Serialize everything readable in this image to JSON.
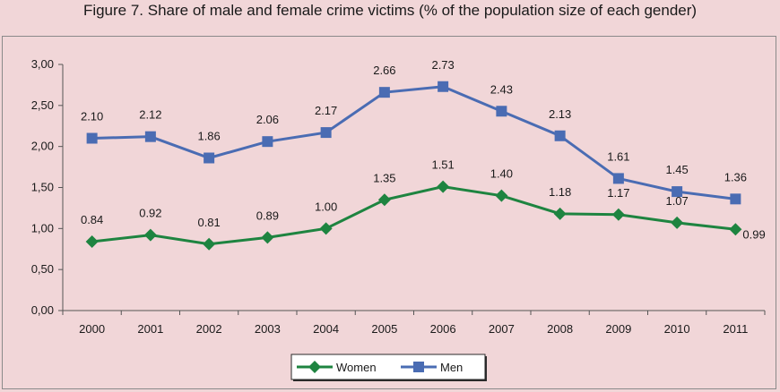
{
  "figure_title": "Figure 7. Share of  male and female crime victims (% of the population size of each gender)",
  "chart_data": {
    "type": "line",
    "title": "Figure 7. Share of  male and female crime victims (% of the population size of each gender)",
    "xlabel": "",
    "ylabel": "",
    "x": [
      "2000",
      "2001",
      "2002",
      "2003",
      "2004",
      "2005",
      "2006",
      "2007",
      "2008",
      "2009",
      "2010",
      "2011"
    ],
    "ylim": [
      0,
      3
    ],
    "yticks": [
      0,
      0.5,
      1,
      1.5,
      2,
      2.5,
      3
    ],
    "ytick_labels": [
      "0,00",
      "0,50",
      "1,00",
      "1,50",
      "2,00",
      "2,50",
      "3,00"
    ],
    "grid": false,
    "legend_position": "bottom",
    "series": [
      {
        "name": "Women",
        "marker": "diamond",
        "color": "#1e8440",
        "values": [
          0.84,
          0.92,
          0.81,
          0.89,
          1.0,
          1.35,
          1.51,
          1.4,
          1.18,
          1.17,
          1.07,
          0.99
        ],
        "labels": [
          "0.84",
          "0.92",
          "0.81",
          "0.89",
          "1.00",
          "1.35",
          "1.51",
          "1.40",
          "1.18",
          "1.17",
          "1.07",
          "0.99"
        ]
      },
      {
        "name": "Men",
        "marker": "square",
        "color": "#4a6cb3",
        "values": [
          2.1,
          2.12,
          1.86,
          2.06,
          2.17,
          2.66,
          2.73,
          2.43,
          2.13,
          1.61,
          1.45,
          1.36
        ],
        "labels": [
          "2.10",
          "2.12",
          "1.86",
          "2.06",
          "2.17",
          "2.66",
          "2.73",
          "2.43",
          "2.13",
          "1.61",
          "1.45",
          "1.36"
        ]
      }
    ]
  }
}
